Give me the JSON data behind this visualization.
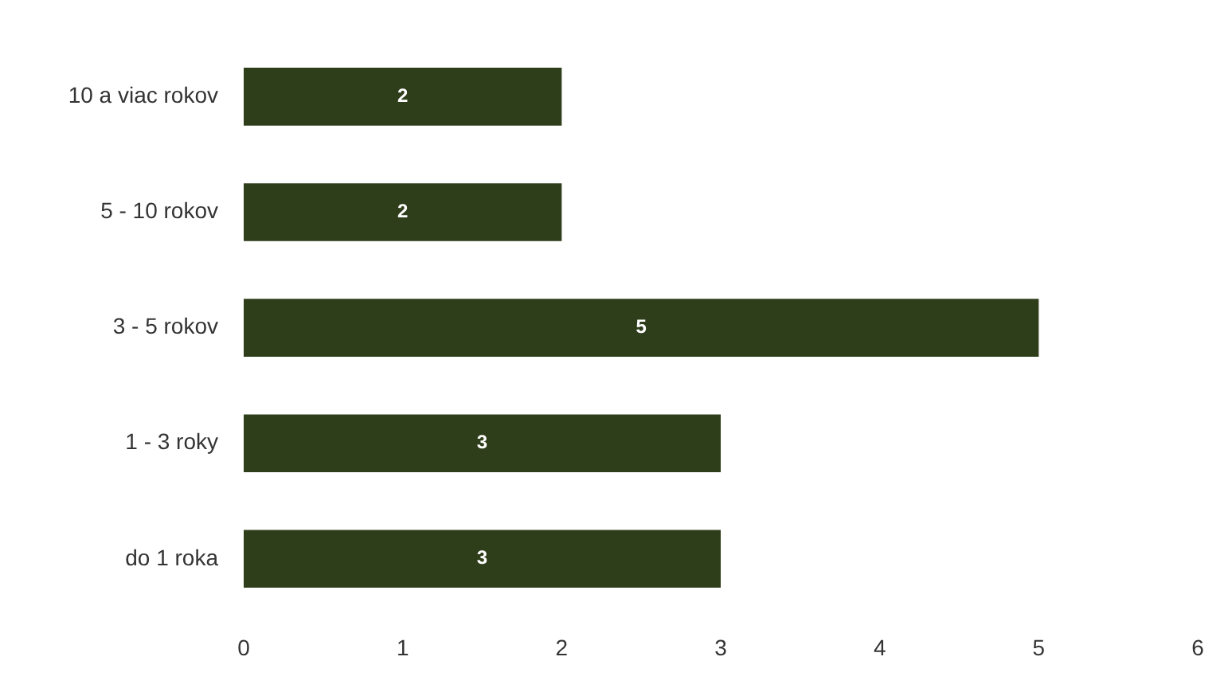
{
  "chart_data": {
    "type": "bar",
    "orientation": "horizontal",
    "categories": [
      "10 a viac rokov",
      "5 - 10 rokov",
      "3 - 5 rokov",
      "1 - 3 roky",
      "do 1 roka"
    ],
    "values": [
      2,
      2,
      5,
      3,
      3
    ],
    "color": "#2e3d1a",
    "xlim": [
      0,
      6
    ],
    "xticks": [
      0,
      1,
      2,
      3,
      4,
      5,
      6
    ],
    "grid": false,
    "legend": false,
    "data_labels": true
  }
}
